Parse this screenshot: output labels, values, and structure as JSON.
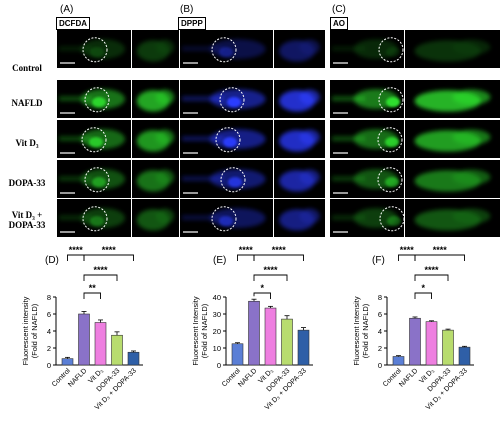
{
  "panels": [
    {
      "letter": "(A)",
      "stain": "DCFDA",
      "color": "#2ee02e"
    },
    {
      "letter": "(B)",
      "stain": "DPPP",
      "color": "#2b3cff"
    },
    {
      "letter": "(C)",
      "stain": "AO",
      "color": "#2ee02e"
    }
  ],
  "rows": [
    "Control",
    "NAFLD",
    "Vit D₃",
    "DOPA-33",
    "Vit D₃ + DOPA-33"
  ],
  "chart_data": [
    {
      "type": "bar",
      "letter": "(D)",
      "ylabel": [
        "Fluorescent intensity",
        "(Fold of NAFLD)"
      ],
      "ylim": [
        0,
        8
      ],
      "yticks": [
        0,
        2,
        4,
        6,
        8
      ],
      "categories": [
        "Control",
        "NAFLD",
        "Vit D₃",
        "DOPA-33",
        "Vit D₃ + DOPA-33"
      ],
      "values": [
        0.75,
        6.0,
        5.0,
        3.5,
        1.5
      ],
      "errors": [
        0.15,
        0.3,
        0.3,
        0.4,
        0.15
      ],
      "colors": [
        "#5b7fd6",
        "#8a72c8",
        "#ee7fe0",
        "#b8dc6e",
        "#2f5fa7"
      ],
      "significance": [
        {
          "from": 1,
          "to": 2,
          "label": "**",
          "level": 0
        },
        {
          "from": 1,
          "to": 3,
          "label": "****",
          "level": 1
        },
        {
          "from": 0,
          "to": 1,
          "label": "****",
          "level": 2
        },
        {
          "from": 1,
          "to": 4,
          "label": "****",
          "level": 2
        }
      ]
    },
    {
      "type": "bar",
      "letter": "(E)",
      "ylabel": [
        "Fluorescent Intensity",
        "(Fold of NAFLD)"
      ],
      "ylim": [
        0,
        40
      ],
      "yticks": [
        0,
        10,
        20,
        30,
        40
      ],
      "categories": [
        "Control",
        "NAFLD",
        "Vit D₃",
        "DOPA-33",
        "Vit D₃ + DOPA-33"
      ],
      "values": [
        12.5,
        37.5,
        33.5,
        27.0,
        20.5
      ],
      "errors": [
        0.6,
        1.2,
        1.0,
        2.0,
        1.5
      ],
      "colors": [
        "#5b7fd6",
        "#8a72c8",
        "#ee7fe0",
        "#b8dc6e",
        "#2f5fa7"
      ],
      "significance": [
        {
          "from": 1,
          "to": 2,
          "label": "*",
          "level": 0
        },
        {
          "from": 1,
          "to": 3,
          "label": "****",
          "level": 1
        },
        {
          "from": 0,
          "to": 1,
          "label": "****",
          "level": 2
        },
        {
          "from": 1,
          "to": 4,
          "label": "****",
          "level": 2
        }
      ]
    },
    {
      "type": "bar",
      "letter": "(F)",
      "ylabel": [
        "Fluorescent Intensity",
        "(Fold of NAFLD)"
      ],
      "ylim": [
        0,
        8
      ],
      "yticks": [
        0,
        2,
        4,
        6,
        8
      ],
      "categories": [
        "Control",
        "NAFLD",
        "Vit D₃",
        "DOPA-33",
        "Vit D₃ + DOPA-33"
      ],
      "values": [
        1.0,
        5.5,
        5.1,
        4.1,
        2.1
      ],
      "errors": [
        0.1,
        0.15,
        0.1,
        0.12,
        0.1
      ],
      "colors": [
        "#5b7fd6",
        "#8a72c8",
        "#ee7fe0",
        "#b8dc6e",
        "#2f5fa7"
      ],
      "significance": [
        {
          "from": 1,
          "to": 2,
          "label": "*",
          "level": 0
        },
        {
          "from": 1,
          "to": 3,
          "label": "****",
          "level": 1
        },
        {
          "from": 0,
          "to": 1,
          "label": "****",
          "level": 2
        },
        {
          "from": 1,
          "to": 4,
          "label": "****",
          "level": 2
        }
      ]
    }
  ]
}
